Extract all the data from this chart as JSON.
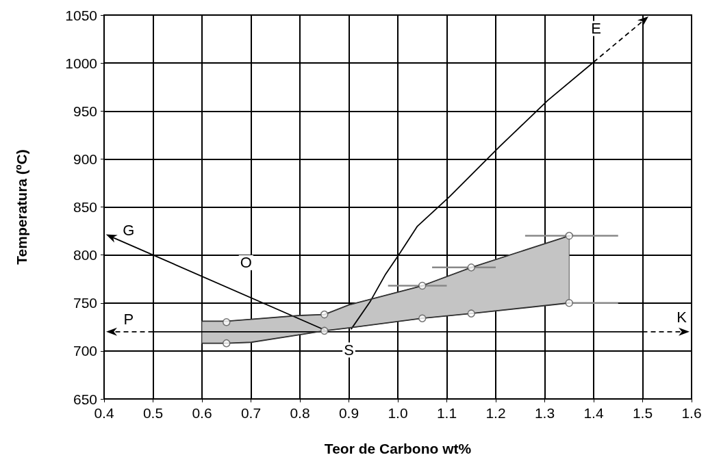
{
  "chart_data": {
    "type": "line",
    "xlabel": "Teor de Carbono wt%",
    "ylabel": "Temperatura (ºC)",
    "xlim": [
      0.4,
      1.6
    ],
    "ylim": [
      650,
      1050
    ],
    "xticks": [
      0.4,
      0.5,
      0.6,
      0.7,
      0.8,
      0.9,
      {
        "value": 1,
        "label": "1.0"
      },
      1.1,
      1.2,
      1.3,
      1.4,
      1.5,
      1.6
    ],
    "yticks": [
      650,
      700,
      750,
      800,
      850,
      900,
      950,
      1000,
      1050
    ],
    "grid": true,
    "series": [
      {
        "type": "line",
        "color": "#000000",
        "line_style": "solid",
        "x": [
          0.85,
          0.5
        ],
        "values": [
          722,
          800
        ]
      },
      {
        "type": "line",
        "color": "#000000",
        "line_style": "solid",
        "x": [
          0.905,
          0.943,
          0.975,
          1.003,
          1.04,
          1.106,
          1.208,
          1.306,
          1.4
        ],
        "values": [
          723,
          751,
          780,
          801,
          830,
          861,
          913,
          961,
          1001
        ]
      },
      {
        "type": "line",
        "color": "#000000",
        "line_style": "solid",
        "x": [
          0.5,
          1.5
        ],
        "values": [
          720,
          720
        ]
      },
      {
        "type": "line",
        "color": "#333333",
        "line_style": "solid",
        "x": [
          0.6,
          0.65,
          0.7,
          0.8,
          0.85,
          0.9,
          1.05,
          1.15,
          1.35
        ],
        "values": [
          731,
          731,
          733,
          737,
          738,
          748,
          768,
          787,
          820
        ],
        "lower": [
          708,
          708,
          709,
          717,
          721,
          724,
          734,
          739,
          750
        ],
        "upper": [
          731,
          731,
          733,
          737,
          738,
          748,
          768,
          787,
          820
        ]
      },
      {
        "type": "line",
        "color": "#333333",
        "line_style": "solid",
        "x": [
          0.6,
          0.65,
          0.7,
          0.8,
          0.85,
          0.9,
          1.05,
          1.15,
          1.35
        ],
        "values": [
          708,
          708,
          709,
          717,
          721,
          724,
          734,
          739,
          750
        ]
      },
      {
        "type": "scatter",
        "color": "#555555",
        "marker": "circle",
        "x": [
          0.65,
          0.85,
          1.05,
          1.15,
          1.35
        ],
        "values": [
          730,
          738,
          768,
          787,
          820
        ],
        "xerrors": [
          null,
          null,
          [
            0.98,
            1.1
          ],
          [
            1.07,
            1.2
          ],
          [
            1.26,
            1.45
          ]
        ]
      },
      {
        "type": "scatter",
        "color": "#555555",
        "marker": "circle",
        "x": [
          0.65,
          0.85,
          1.05,
          1.15,
          1.35
        ],
        "values": [
          708,
          721,
          734,
          739,
          750
        ],
        "xerrors": [
          null,
          null,
          null,
          null,
          [
            1.35,
            1.45
          ]
        ]
      }
    ],
    "annotations": [
      {
        "text": "G",
        "x": 0.45,
        "y": 826
      },
      {
        "text": "O",
        "x": 0.69,
        "y": 792
      },
      {
        "text": "E",
        "x": 1.405,
        "y": 1036
      },
      {
        "text": "P",
        "x": 0.45,
        "y": 733
      },
      {
        "text": "K",
        "x": 1.58,
        "y": 735
      },
      {
        "text": "S",
        "x": 0.9,
        "y": 701
      }
    ]
  }
}
